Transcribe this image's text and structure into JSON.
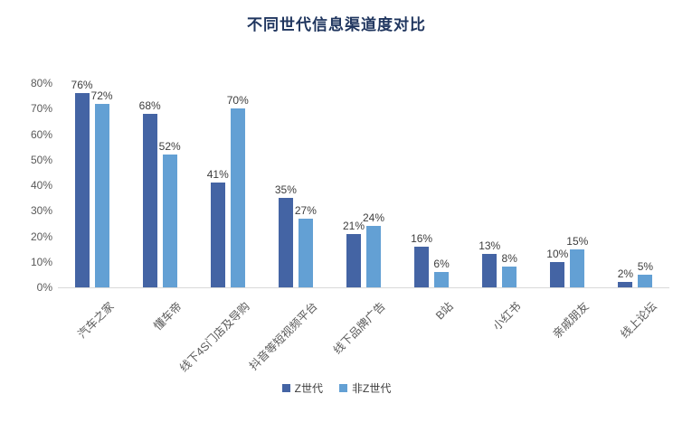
{
  "title": "不同世代信息渠道度对比",
  "colors": {
    "series_gen_z": "#4464A4",
    "series_non_gen_z": "#63A0D4",
    "title_text": "#1F355E",
    "tick_label": "#595959",
    "data_label": "#3D3D3D",
    "axis_line": "#D9D9D9",
    "background": "#FFFFFF"
  },
  "chart_data": {
    "type": "bar",
    "title": "不同世代信息渠道度对比",
    "categories": [
      "汽车之家",
      "懂车帝",
      "线下4S门店及导购",
      "抖音等短视频平台",
      "线下品牌广告",
      "B站",
      "小红书",
      "亲戚朋友",
      "线上论坛"
    ],
    "series": [
      {
        "name": "Z世代",
        "key": "gen-z",
        "color": "#4464A4",
        "values": [
          76,
          68,
          41,
          35,
          21,
          16,
          13,
          10,
          2
        ]
      },
      {
        "name": "非Z世代",
        "key": "non-gen-z",
        "color": "#63A0D4",
        "values": [
          72,
          52,
          70,
          27,
          24,
          6,
          8,
          15,
          5
        ]
      }
    ],
    "xlabel": "",
    "ylabel": "",
    "ylim": [
      0,
      80
    ],
    "y_ticks": [
      "80%",
      "70%",
      "60%",
      "50%",
      "40%",
      "30%",
      "20%",
      "10%",
      "0%"
    ],
    "value_suffix": "%",
    "grid": false,
    "data_labels": true,
    "legend_position": "bottom",
    "x_label_rotation_deg": -45
  },
  "legend": {
    "items": [
      {
        "label": "Z世代",
        "color": "#4464A4"
      },
      {
        "label": "非Z世代",
        "color": "#63A0D4"
      }
    ]
  }
}
